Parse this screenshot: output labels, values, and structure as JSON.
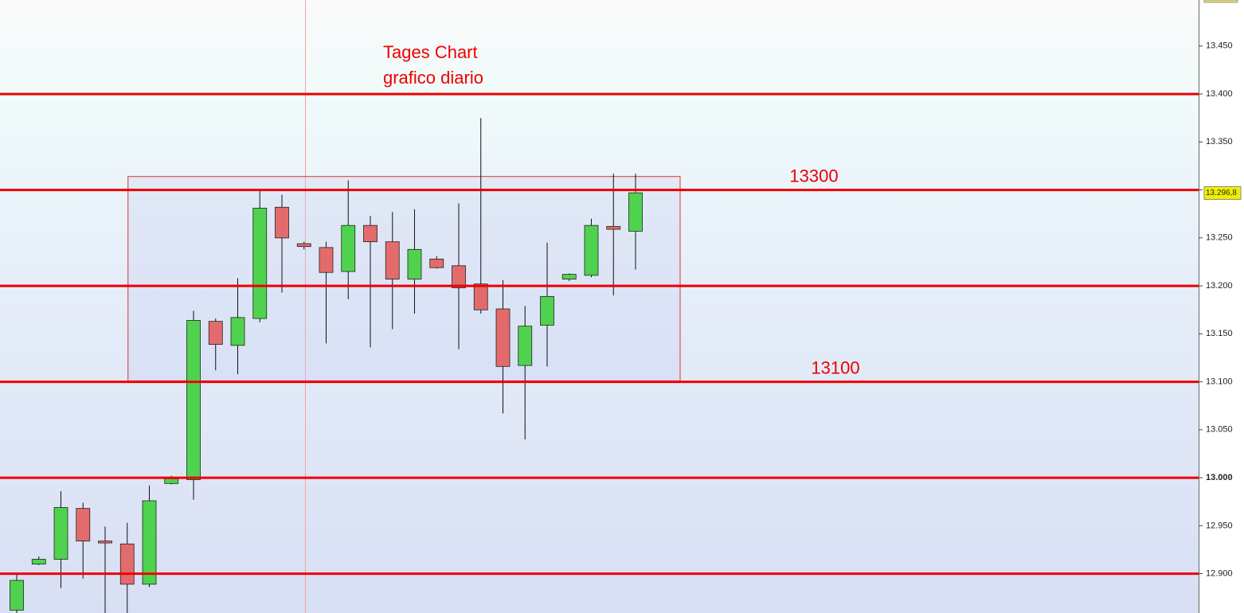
{
  "chart_data": {
    "type": "candlestick",
    "title_lines": [
      "Tages Chart",
      "grafico diario"
    ],
    "open": [
      12862,
      12910,
      12915,
      12968,
      12934,
      12931,
      12889,
      12994,
      12998,
      13163,
      13138,
      13166,
      13282,
      13244,
      13240,
      13215,
      13263,
      13246,
      13207,
      13228,
      13221,
      13202,
      13176,
      13117,
      13159,
      13207,
      13211,
      13262,
      13257
    ],
    "high": [
      12899,
      12918,
      12986,
      12974,
      12949,
      12953,
      12992,
      13002,
      13174,
      13166,
      13208,
      13299,
      13295,
      13246,
      13246,
      13310,
      13273,
      13277,
      13280,
      13231,
      13286,
      13375,
      13206,
      13179,
      13245,
      13213,
      13270,
      13317,
      13317
    ],
    "low": [
      12855,
      12909,
      12885,
      12895,
      12855,
      12855,
      12886,
      12993,
      12977,
      13112,
      13108,
      13162,
      13193,
      13238,
      13140,
      13186,
      13136,
      13155,
      13171,
      13218,
      13134,
      13171,
      13067,
      13040,
      13116,
      13205,
      13209,
      13190,
      13217
    ],
    "close": [
      12893,
      12915,
      12969,
      12934,
      12932,
      12889,
      12976,
      12999,
      13164,
      13139,
      13167,
      13281,
      13250,
      13241,
      13214,
      13263,
      13246,
      13207,
      13238,
      13219,
      13198,
      13175,
      13116,
      13158,
      13189,
      13212,
      13263,
      13259,
      13297
    ],
    "up_color": "#4fd34f",
    "down_color": "#e46b6b",
    "levels": [
      13400,
      13300,
      13200,
      13100,
      13000,
      12900
    ],
    "level_color": "#ee0000",
    "level_labels": [
      {
        "value": 13300,
        "label": "13300"
      },
      {
        "value": 13100,
        "label": "13100"
      }
    ],
    "range_box": [
      13314,
      13101
    ],
    "last_price": {
      "value": 13296.8,
      "label": "13.296,8"
    },
    "ylim": [
      12859,
      13498
    ],
    "yticks": [
      {
        "value": 13450,
        "label": "13.450"
      },
      {
        "value": 13400,
        "label": "13.400"
      },
      {
        "value": 13350,
        "label": "13.350"
      },
      {
        "value": 13300,
        "label": "13.300"
      },
      {
        "value": 13250,
        "label": "13.250"
      },
      {
        "value": 13200,
        "label": "13.200"
      },
      {
        "value": 13150,
        "label": "13.150"
      },
      {
        "value": 13100,
        "label": "13.100"
      },
      {
        "value": 13050,
        "label": "13.050"
      },
      {
        "value": 13000,
        "label": "13.000"
      },
      {
        "value": 12950,
        "label": "12.950"
      },
      {
        "value": 12900,
        "label": "12.900"
      }
    ]
  }
}
